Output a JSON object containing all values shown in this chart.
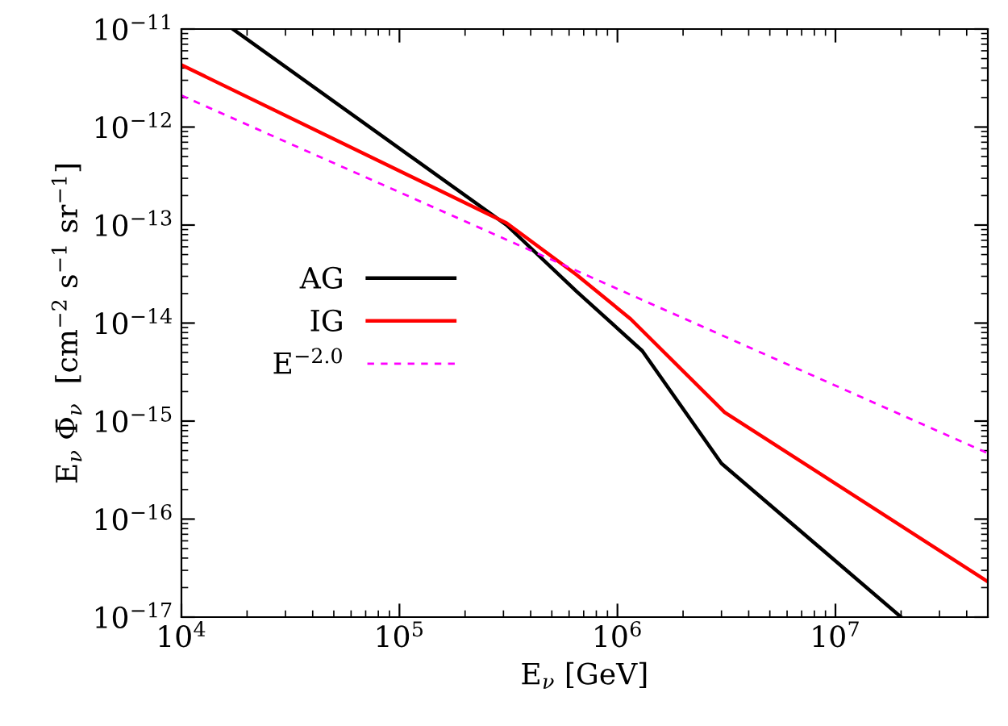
{
  "chart_data": {
    "type": "line",
    "xlabel": "E$_{ν}$ [GeV]",
    "ylabel": "E$_{ν}$ Φ̄$_{ν}$  [cm$^{−2}$ s$^{−1}$ sr$^{−1}$]",
    "log": "xy",
    "xlim": [
      10000.0,
      50000000.0
    ],
    "ylim": [
      1e-17,
      1e-11
    ],
    "xticks": [
      {
        "value": 10000.0,
        "label": "10$^{4}$"
      },
      {
        "value": 100000.0,
        "label": "10$^{5}$"
      },
      {
        "value": 1000000.0,
        "label": "10$^{6}$"
      },
      {
        "value": 10000000.0,
        "label": "10$^{7}$"
      }
    ],
    "yticks": [
      {
        "value": 1e-17,
        "label": "10$^{−17}$"
      },
      {
        "value": 1e-16,
        "label": "10$^{−16}$"
      },
      {
        "value": 1e-15,
        "label": "10$^{−15}$"
      },
      {
        "value": 1e-14,
        "label": "10$^{−14}$"
      },
      {
        "value": 1e-13,
        "label": "10$^{−13}$"
      },
      {
        "value": 1e-12,
        "label": "10$^{−12}$"
      },
      {
        "value": 1e-11,
        "label": "10$^{−11}$"
      }
    ],
    "grid": false,
    "legend": "left",
    "series": [
      {
        "name": "AG",
        "color": "#000000",
        "line_style": "solid",
        "x": [
          17200.0,
          310000.0,
          650000.0,
          1300000.0,
          3000000.0,
          20000000.0
        ],
        "values": [
          1e-11,
          1e-13,
          2.1e-14,
          5.2e-15,
          3.7e-16,
          1e-17
        ]
      },
      {
        "name": "IG",
        "color": "#ff0000",
        "line_style": "solid",
        "x": [
          10000.0,
          310000.0,
          650000.0,
          1150000.0,
          3100000.0,
          50000000.0
        ],
        "values": [
          4.3e-12,
          1.05e-13,
          3.1e-14,
          1.1e-14,
          1.23e-15,
          2.3e-17
        ]
      },
      {
        "name": "E$^{−2.0}$",
        "color": "#ff00ff",
        "line_style": "dashed",
        "x": [
          10000.0,
          50000000.0
        ],
        "values": [
          2.1e-12,
          4.7e-16
        ]
      }
    ]
  }
}
